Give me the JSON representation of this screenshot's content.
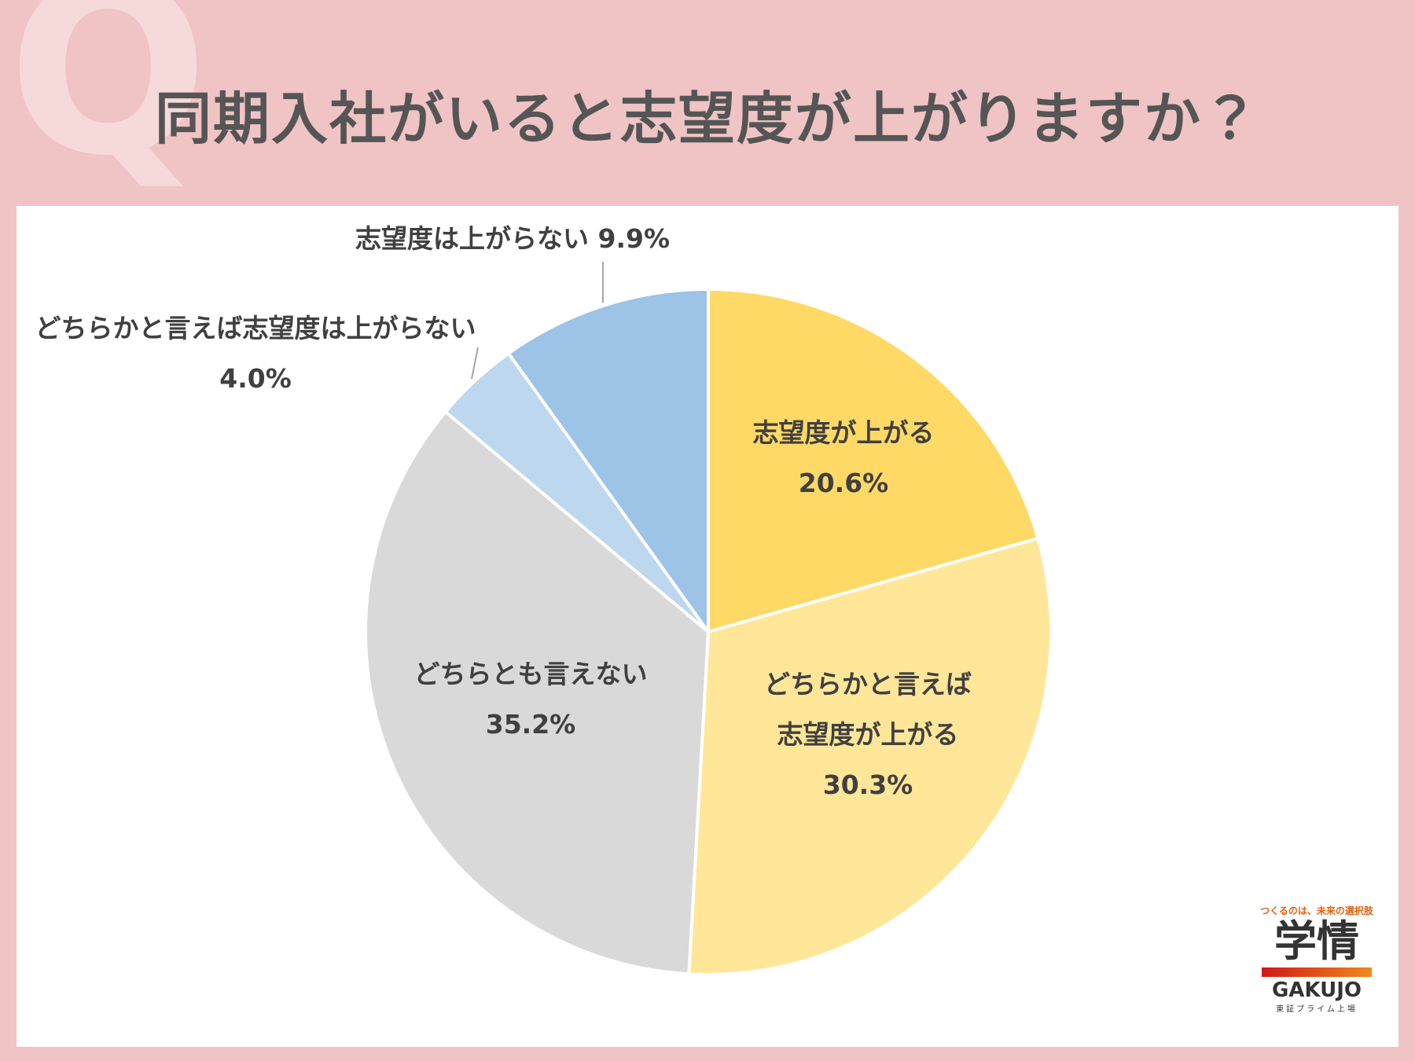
{
  "chart_data": {
    "type": "pie",
    "title": "同期入社がいると志望度が上がりますか？",
    "categories": [
      "志望度が上がる",
      "どちらかと言えば志望度が上がる",
      "どちらとも言えない",
      "どちらかと言えば志望度は上がらない",
      "志望度は上がらない"
    ],
    "values": [
      20.6,
      30.3,
      35.2,
      4.0,
      9.9
    ],
    "value_labels": [
      "20.6%",
      "30.3%",
      "35.2%",
      "4.0%",
      "9.9%"
    ],
    "colors": [
      "#ffd966",
      "#ffe699",
      "#d9d9d9",
      "#bdd7ee",
      "#9dc3e6"
    ]
  },
  "watermark": "Q",
  "logo": {
    "tagline": "つくるのは、未来の選択肢",
    "name": "学情",
    "romaji": "GAKUJO",
    "listing": "東証プライム上場"
  }
}
